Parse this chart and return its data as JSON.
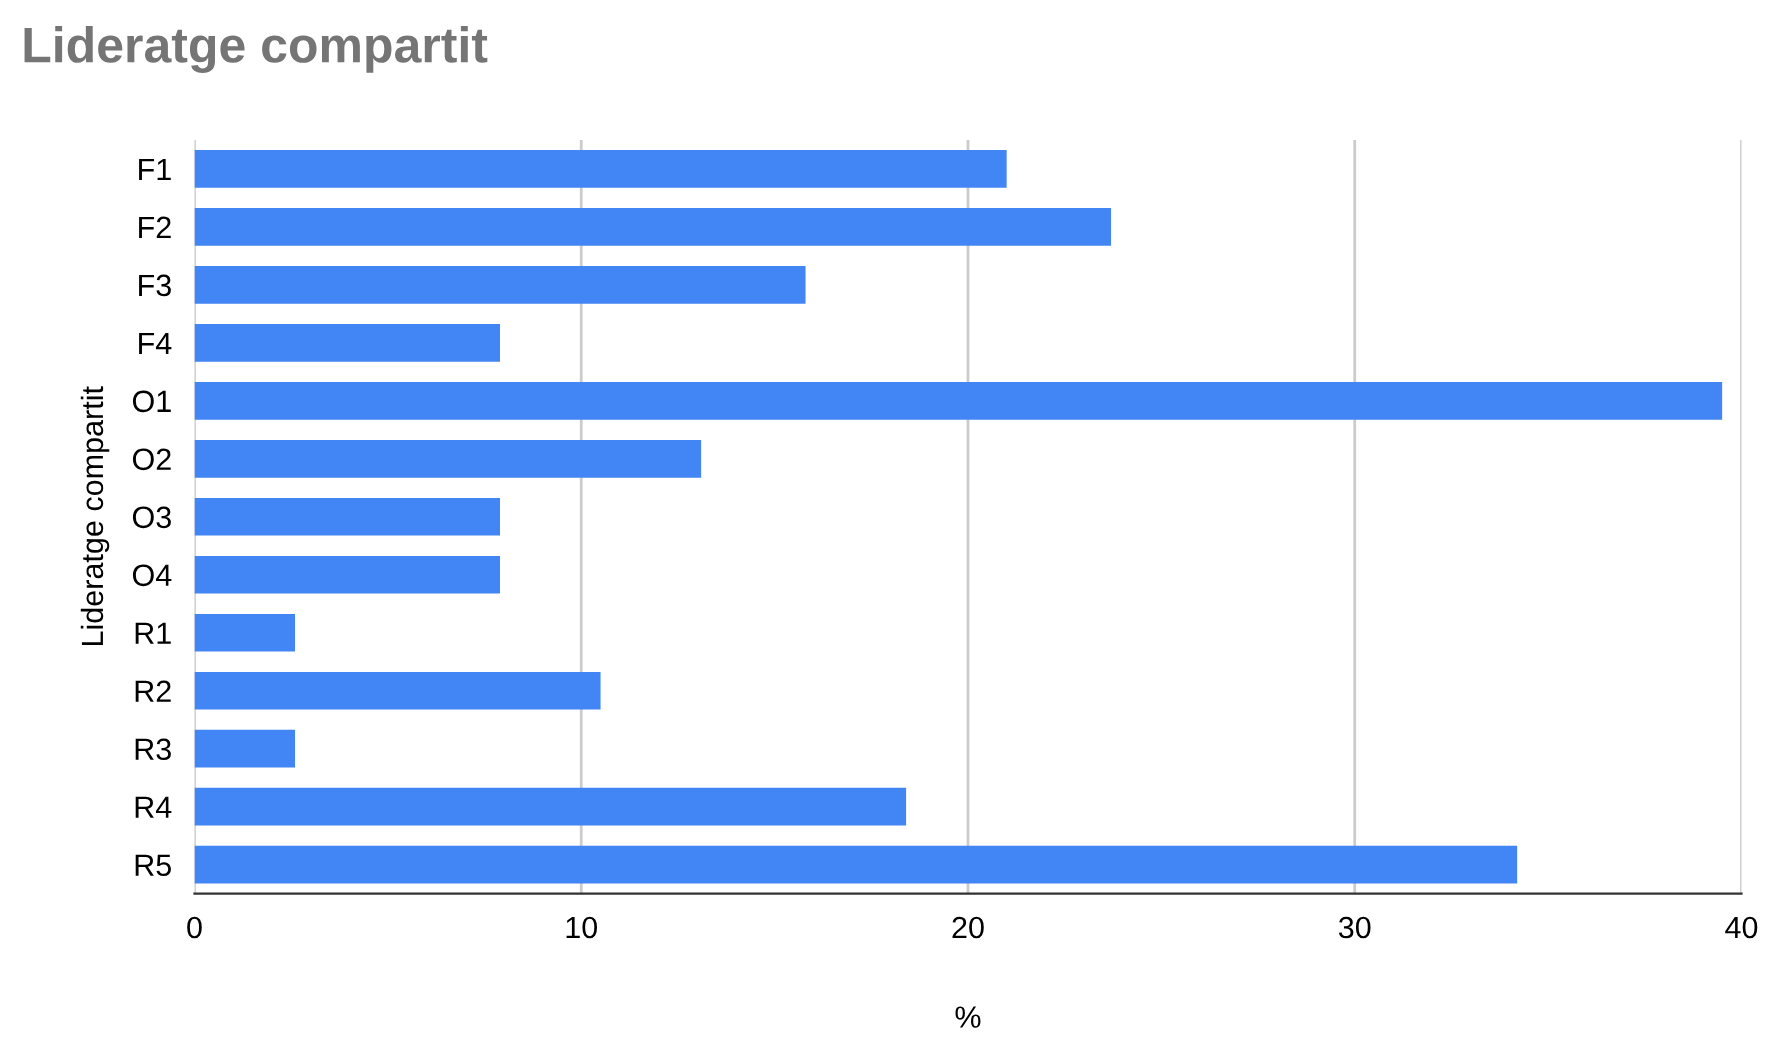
{
  "chart_data": {
    "type": "bar",
    "orientation": "horizontal",
    "title": "Lideratge compartit",
    "xlabel": "%",
    "ylabel": "Lideratge compartit",
    "categories": [
      "F1",
      "F2",
      "F3",
      "F4",
      "O1",
      "O2",
      "O3",
      "O4",
      "R1",
      "R2",
      "R3",
      "R4",
      "R5"
    ],
    "values": [
      21.0,
      23.7,
      15.8,
      7.9,
      39.5,
      13.1,
      7.9,
      7.9,
      2.6,
      10.5,
      2.6,
      18.4,
      34.2
    ],
    "color": "#4285f4",
    "xlim": [
      0,
      40
    ],
    "xticks": [
      0,
      10,
      20,
      30,
      40
    ],
    "grid": "x"
  }
}
